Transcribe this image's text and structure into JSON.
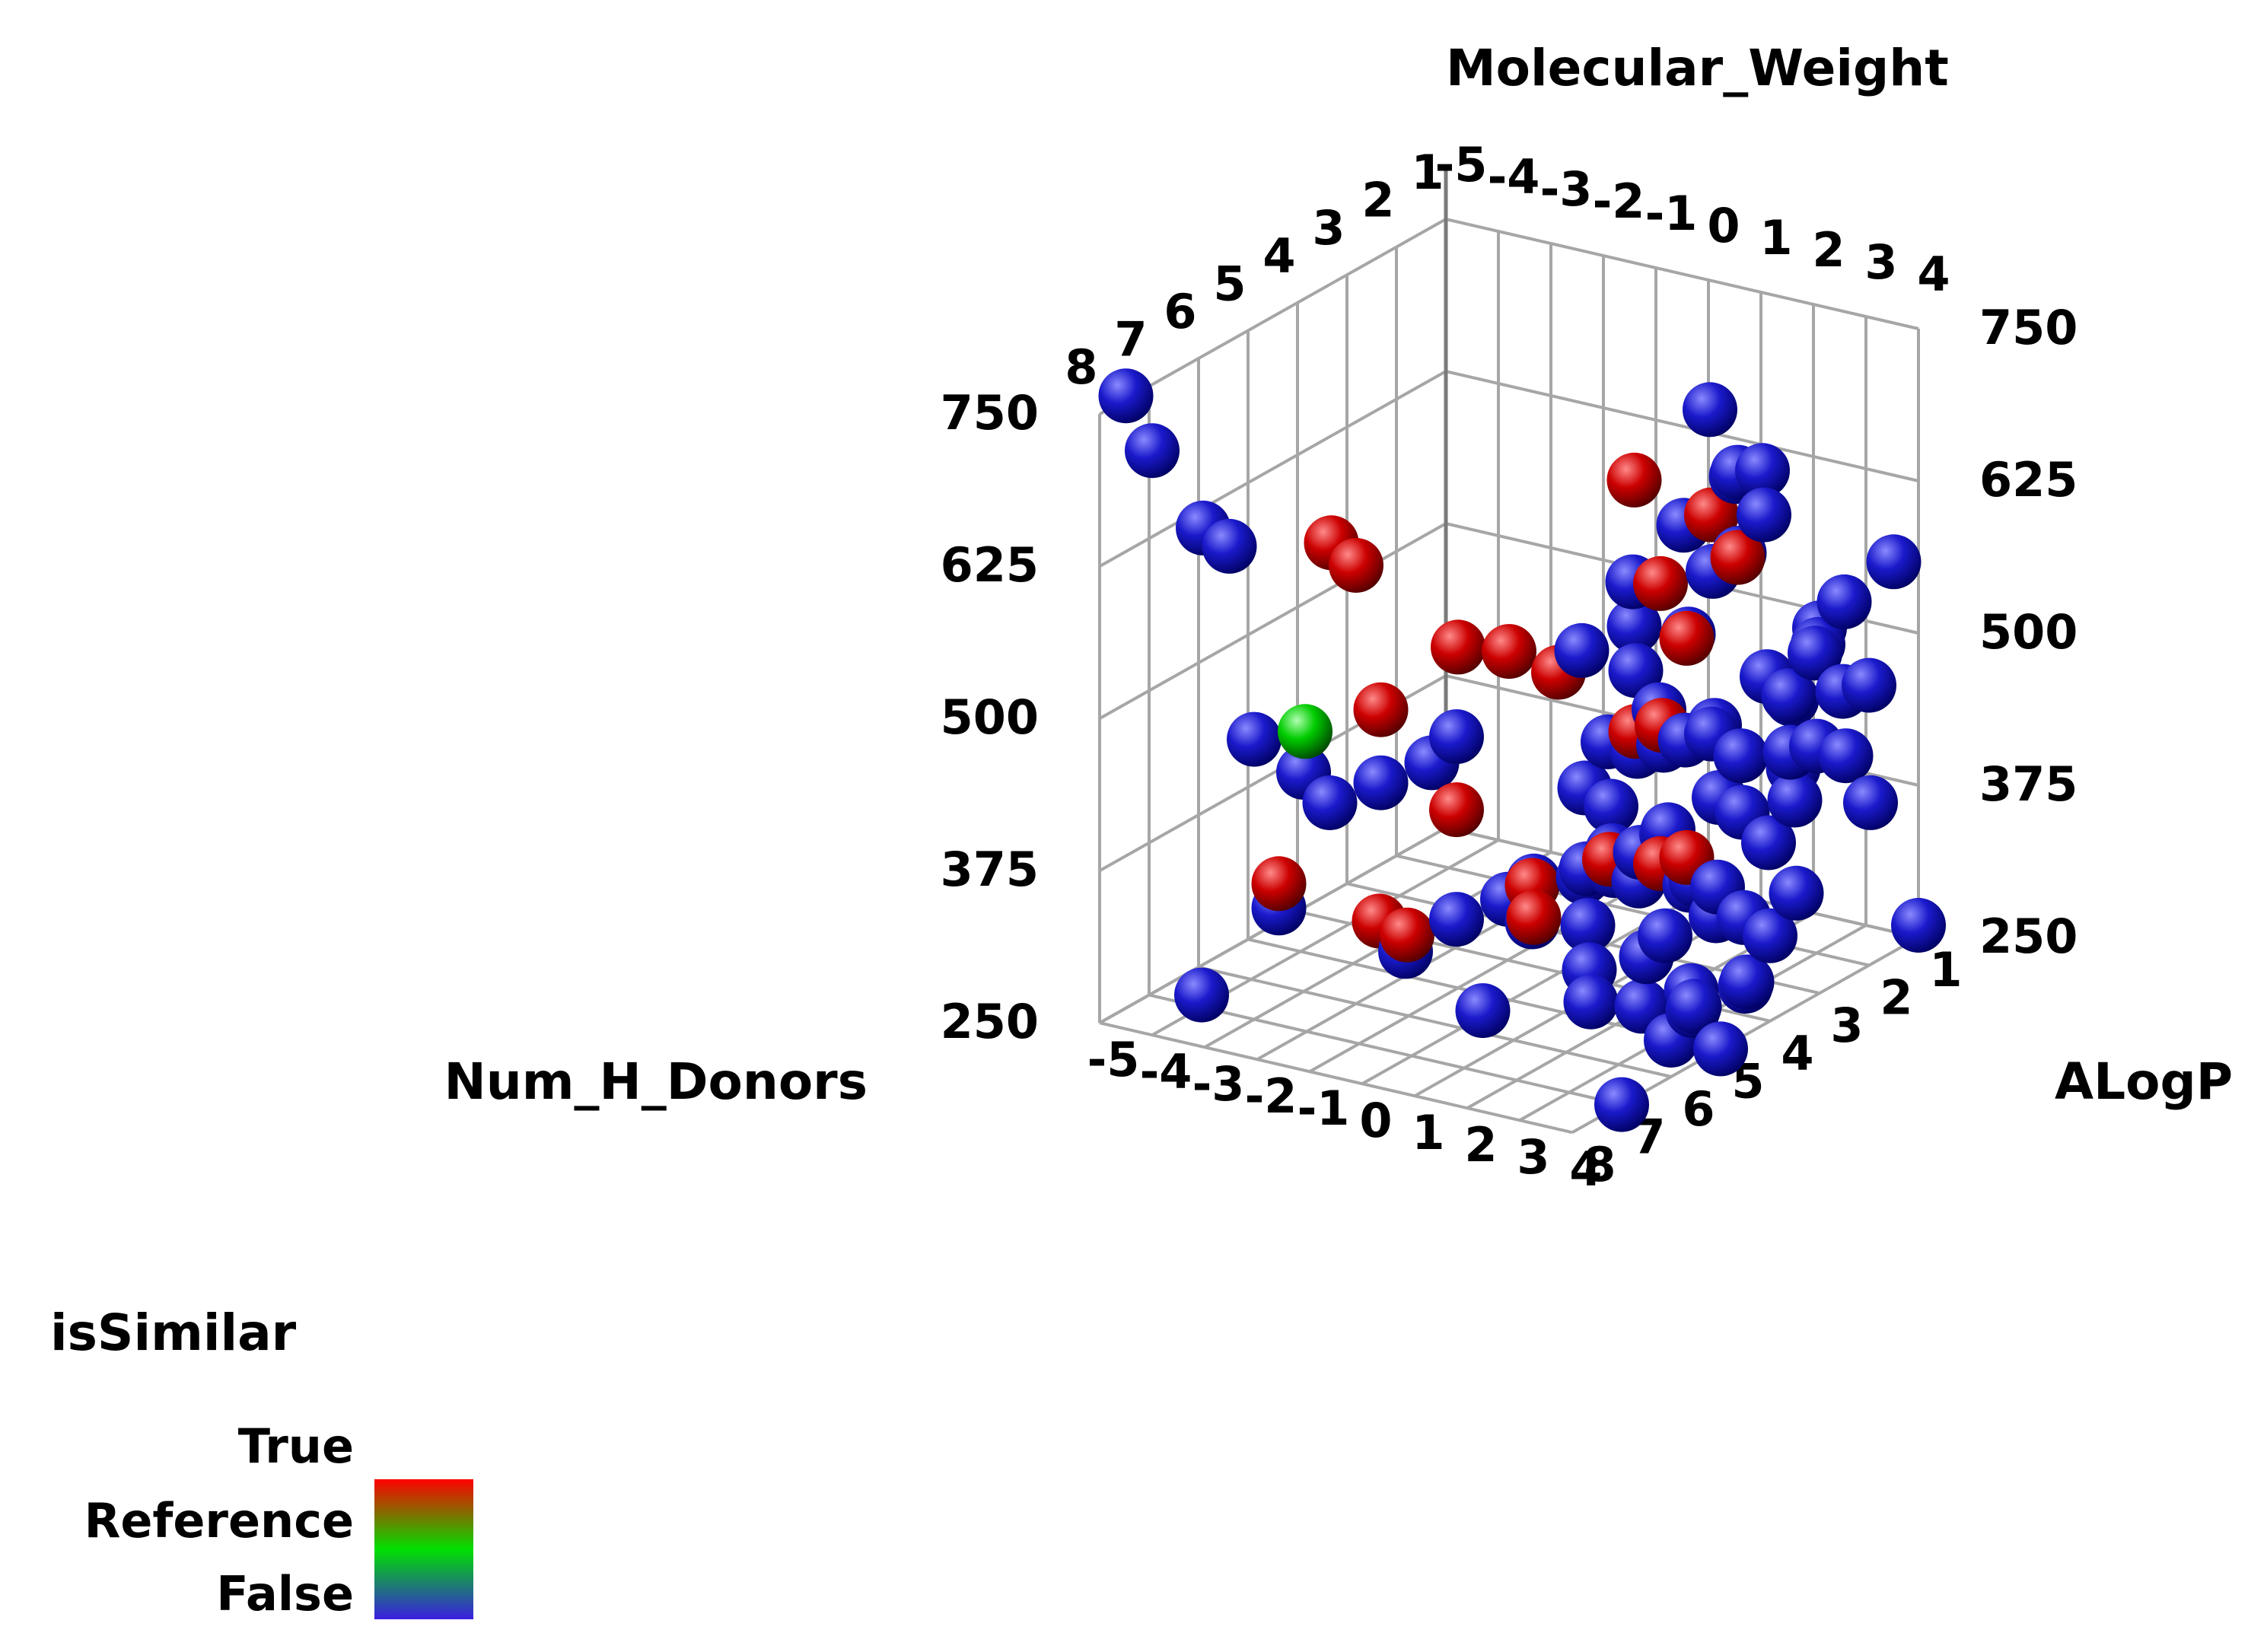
{
  "chart_data": {
    "type": "scatter3d",
    "axes": {
      "x": {
        "label": "ALogP",
        "ticks": [
          -5,
          -4,
          -3,
          -2,
          -1,
          0,
          1,
          2,
          3,
          4
        ]
      },
      "y": {
        "label": "Num_H_Donors",
        "ticks": [
          1,
          2,
          3,
          4,
          5,
          6,
          7,
          8
        ]
      },
      "z": {
        "label": "Molecular_Weight",
        "ticks": [
          250,
          375,
          500,
          625,
          750
        ]
      }
    },
    "color_legend": {
      "title": "isSimilar",
      "entries": [
        "True",
        "Reference",
        "False"
      ],
      "colors": {
        "True": "#cc0000",
        "Reference": "#00cc00",
        "False": "#1a1acc"
      }
    },
    "reference": [
      {
        "x": -2.5,
        "y": 6.5,
        "z": 480
      }
    ],
    "similar_true": [
      {
        "x": -2.0,
        "y": 6.5,
        "z": 640
      },
      {
        "x": -2.0,
        "y": 6.0,
        "z": 610
      },
      {
        "x": -1.0,
        "y": 5.0,
        "z": 530
      },
      {
        "x": -0.5,
        "y": 4.5,
        "z": 520
      },
      {
        "x": -2.0,
        "y": 5.5,
        "z": 480
      },
      {
        "x": -0.5,
        "y": 3.5,
        "z": 480
      },
      {
        "x": -3.0,
        "y": 6.5,
        "z": 350
      },
      {
        "x": -1.5,
        "y": 4.5,
        "z": 380
      },
      {
        "x": -2.5,
        "y": 5.0,
        "z": 290
      },
      {
        "x": -1.0,
        "y": 3.5,
        "z": 300
      },
      {
        "x": 0.0,
        "y": 3.0,
        "z": 320
      },
      {
        "x": 0.5,
        "y": 2.5,
        "z": 310
      },
      {
        "x": 1.0,
        "y": 2.5,
        "z": 320
      },
      {
        "x": 0.5,
        "y": 3.0,
        "z": 430
      },
      {
        "x": 1.0,
        "y": 3.0,
        "z": 440
      },
      {
        "x": 1.0,
        "y": 2.5,
        "z": 500
      },
      {
        "x": 0.5,
        "y": 2.5,
        "z": 540
      },
      {
        "x": 1.0,
        "y": 2.0,
        "z": 590
      },
      {
        "x": 1.5,
        "y": 2.0,
        "z": 560
      },
      {
        "x": 0.0,
        "y": 2.5,
        "z": 620
      },
      {
        "x": -1.5,
        "y": 5.5,
        "z": 300
      },
      {
        "x": -0.5,
        "y": 4.0,
        "z": 290
      }
    ],
    "similar_false": [
      {
        "x": -4.5,
        "y": 8.0,
        "z": 770
      },
      {
        "x": -4.0,
        "y": 8.0,
        "z": 730
      },
      {
        "x": -3.5,
        "y": 7.5,
        "z": 660
      },
      {
        "x": -3.0,
        "y": 7.5,
        "z": 650
      },
      {
        "x": -3.0,
        "y": 7.0,
        "z": 480
      },
      {
        "x": -3.0,
        "y": 6.0,
        "z": 430
      },
      {
        "x": -2.5,
        "y": 6.0,
        "z": 410
      },
      {
        "x": -2.0,
        "y": 5.5,
        "z": 420
      },
      {
        "x": -1.5,
        "y": 5.0,
        "z": 430
      },
      {
        "x": -1.5,
        "y": 4.5,
        "z": 440
      },
      {
        "x": -4.0,
        "y": 7.0,
        "z": 260
      },
      {
        "x": -3.0,
        "y": 6.5,
        "z": 330
      },
      {
        "x": -2.0,
        "y": 5.0,
        "z": 270
      },
      {
        "x": -1.5,
        "y": 4.5,
        "z": 290
      },
      {
        "x": -1.0,
        "y": 4.0,
        "z": 300
      },
      {
        "x": -0.5,
        "y": 4.0,
        "z": 320
      },
      {
        "x": -1.0,
        "y": 3.5,
        "z": 270
      },
      {
        "x": -0.5,
        "y": 3.0,
        "z": 300
      },
      {
        "x": -1.0,
        "y": 4.5,
        "z": 220
      },
      {
        "x": 0.5,
        "y": 1.5,
        "z": 660
      },
      {
        "x": 1.5,
        "y": 1.5,
        "z": 620
      },
      {
        "x": 1.0,
        "y": 1.5,
        "z": 610
      },
      {
        "x": 1.5,
        "y": 2.0,
        "z": 630
      },
      {
        "x": 2.0,
        "y": 2.0,
        "z": 600
      },
      {
        "x": 2.0,
        "y": 2.5,
        "z": 580
      },
      {
        "x": 1.5,
        "y": 2.5,
        "z": 560
      },
      {
        "x": 1.5,
        "y": 3.0,
        "z": 520
      },
      {
        "x": 0.0,
        "y": 2.5,
        "z": 500
      },
      {
        "x": 0.5,
        "y": 3.0,
        "z": 480
      },
      {
        "x": 1.0,
        "y": 3.5,
        "z": 430
      },
      {
        "x": 1.5,
        "y": 3.5,
        "z": 440
      },
      {
        "x": 2.0,
        "y": 3.0,
        "z": 450
      },
      {
        "x": 2.5,
        "y": 3.0,
        "z": 430
      },
      {
        "x": 0.5,
        "y": 3.5,
        "z": 380
      },
      {
        "x": 1.0,
        "y": 4.0,
        "z": 360
      },
      {
        "x": 1.5,
        "y": 4.0,
        "z": 340
      },
      {
        "x": 2.0,
        "y": 3.5,
        "z": 330
      },
      {
        "x": 2.0,
        "y": 4.0,
        "z": 300
      },
      {
        "x": 2.5,
        "y": 3.5,
        "z": 310
      },
      {
        "x": 2.5,
        "y": 4.0,
        "z": 260
      },
      {
        "x": 3.0,
        "y": 3.0,
        "z": 500
      },
      {
        "x": 3.0,
        "y": 2.5,
        "z": 470
      },
      {
        "x": 3.0,
        "y": 3.5,
        "z": 400
      },
      {
        "x": 3.5,
        "y": 3.0,
        "z": 430
      },
      {
        "x": 3.5,
        "y": 3.5,
        "z": 380
      },
      {
        "x": 3.0,
        "y": 4.0,
        "z": 350
      },
      {
        "x": 3.5,
        "y": 4.0,
        "z": 330
      },
      {
        "x": 3.0,
        "y": 4.5,
        "z": 260
      },
      {
        "x": 4.0,
        "y": 3.0,
        "z": 550
      },
      {
        "x": 4.0,
        "y": 2.5,
        "z": 560
      },
      {
        "x": 4.0,
        "y": 3.5,
        "z": 420
      },
      {
        "x": 4.0,
        "y": 4.0,
        "z": 320
      },
      {
        "x": 4.0,
        "y": 4.5,
        "z": 290
      },
      {
        "x": 4.0,
        "y": 5.0,
        "z": 250
      },
      {
        "x": 3.5,
        "y": 5.0,
        "z": 280
      },
      {
        "x": 2.5,
        "y": 5.0,
        "z": 270
      },
      {
        "x": 4.0,
        "y": 6.0,
        "z": 280
      },
      {
        "x": 4.0,
        "y": 7.0,
        "z": 250
      },
      {
        "x": 4.0,
        "y": 1.5,
        "z": 570
      },
      {
        "x": 4.0,
        "y": 2.0,
        "z": 480
      },
      {
        "x": 3.5,
        "y": 2.0,
        "z": 470
      },
      {
        "x": 3.5,
        "y": 2.5,
        "z": 520
      },
      {
        "x": 3.0,
        "y": 2.0,
        "z": 420
      },
      {
        "x": 2.5,
        "y": 2.0,
        "z": 410
      },
      {
        "x": 2.0,
        "y": 1.5,
        "z": 440
      },
      {
        "x": 2.5,
        "y": 1.5,
        "z": 480
      },
      {
        "x": 1.0,
        "y": 2.0,
        "z": 410
      },
      {
        "x": 0.5,
        "y": 2.0,
        "z": 400
      },
      {
        "x": 0.0,
        "y": 2.0,
        "z": 420
      },
      {
        "x": -0.5,
        "y": 2.5,
        "z": 400
      },
      {
        "x": 0.0,
        "y": 3.5,
        "z": 390
      },
      {
        "x": 0.5,
        "y": 4.0,
        "z": 340
      },
      {
        "x": 1.0,
        "y": 4.5,
        "z": 310
      },
      {
        "x": 1.5,
        "y": 5.0,
        "z": 290
      },
      {
        "x": 2.0,
        "y": 5.5,
        "z": 280
      },
      {
        "x": 1.5,
        "y": 4.5,
        "z": 360
      },
      {
        "x": 2.0,
        "y": 4.5,
        "z": 380
      },
      {
        "x": 2.5,
        "y": 4.5,
        "z": 400
      },
      {
        "x": 3.0,
        "y": 5.0,
        "z": 420
      },
      {
        "x": 3.5,
        "y": 4.5,
        "z": 440
      },
      {
        "x": 4.0,
        "y": 5.5,
        "z": 400
      },
      {
        "x": 4.0,
        "y": 6.5,
        "z": 360
      },
      {
        "x": 4.5,
        "y": 5.0,
        "z": 310
      },
      {
        "x": 4.5,
        "y": 4.0,
        "z": 360
      },
      {
        "x": 4.5,
        "y": 3.0,
        "z": 450
      },
      {
        "x": 4.5,
        "y": 2.5,
        "z": 400
      },
      {
        "x": 4.0,
        "y": 1.0,
        "z": 260
      },
      {
        "x": 0.0,
        "y": 1.5,
        "z": 560
      },
      {
        "x": -0.5,
        "y": 2.0,
        "z": 520
      },
      {
        "x": -1.0,
        "y": 2.5,
        "z": 470
      }
    ]
  }
}
